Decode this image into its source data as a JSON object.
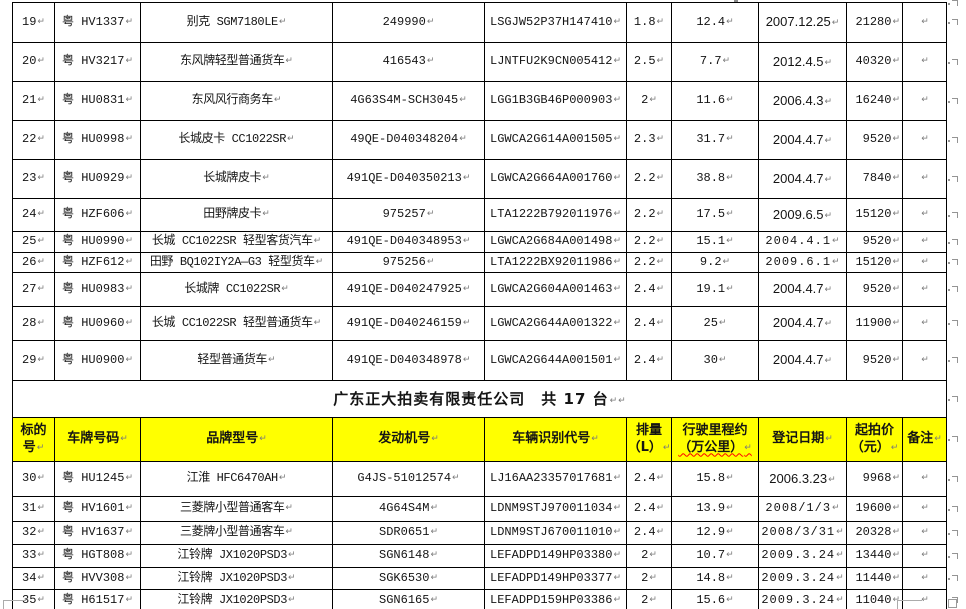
{
  "document": {
    "section_title": "广东正大拍卖有限责任公司　共 17 台",
    "marks": {
      "paragraph_mark": "↵"
    },
    "colors": {
      "header_bg": "#ffff00",
      "border": "#000000",
      "spellcheck_underline": "#ff0000",
      "formatting_mark_gray": "#808080"
    },
    "columns": [
      {
        "key": "no",
        "label_lines": [
          "标的",
          "号"
        ]
      },
      {
        "key": "plate",
        "label_lines": [
          "车牌号码"
        ]
      },
      {
        "key": "brand",
        "label_lines": [
          "品牌型号"
        ]
      },
      {
        "key": "engine",
        "label_lines": [
          "发动机号"
        ]
      },
      {
        "key": "vin",
        "label_lines": [
          "车辆识别代号"
        ]
      },
      {
        "key": "disp",
        "label_lines": [
          "排量",
          "（L）"
        ]
      },
      {
        "key": "mileage",
        "label_lines": [
          "行驶里程约",
          "（万公里）"
        ],
        "squiggle_line": 1
      },
      {
        "key": "date",
        "label_lines": [
          "登记日期"
        ]
      },
      {
        "key": "price",
        "label_lines": [
          "起拍价",
          "（元）"
        ]
      },
      {
        "key": "remark",
        "label_lines": [
          "备注"
        ]
      }
    ],
    "rows_above_title": [
      {
        "no": "19",
        "plate": "粤 HV1337",
        "brand": "别克 SGM7180LE",
        "engine": "249990",
        "vin": "LSGJW52P37H147410",
        "disp": "1.8",
        "mileage": "12.4",
        "date": "2007.12.25",
        "price": "21280",
        "remark": "",
        "date_font": "sans"
      },
      {
        "no": "20",
        "plate": "粤 HV3217",
        "brand": "东风牌轻型普通货车",
        "engine": "416543",
        "vin": "LJNTFU2K9CN005412",
        "disp": "2.5",
        "mileage": "7.7",
        "date": "2012.4.5",
        "price": "40320",
        "remark": "",
        "date_font": "sans"
      },
      {
        "no": "21",
        "plate": "粤 HU0831",
        "brand": "东风风行商务车",
        "engine": "4G63S4M-SCH3045",
        "vin": "LGG1B3GB46P000903",
        "disp": "2",
        "mileage": "11.6",
        "date": "2006.4.3",
        "price": "16240",
        "remark": "",
        "date_font": "sans"
      },
      {
        "no": "22",
        "plate": "粤 HU0998",
        "brand": "长城皮卡 CC1022SR",
        "engine": "49QE-D040348204",
        "vin": "LGWCA2G614A001505",
        "disp": "2.3",
        "mileage": "31.7",
        "date": "2004.4.7",
        "price": "9520",
        "remark": "",
        "date_font": "sans"
      },
      {
        "no": "23",
        "plate": "粤 HU0929",
        "brand": "长城牌皮卡",
        "engine": "491QE-D040350213",
        "vin": "LGWCA2G664A001760",
        "disp": "2.2",
        "mileage": "38.8",
        "date": "2004.4.7",
        "price": "7840",
        "remark": "",
        "date_font": "sans"
      },
      {
        "no": "24",
        "plate": "粤 HZF606",
        "brand": "田野牌皮卡",
        "engine": "975257",
        "vin": "LTA1222B792011976",
        "disp": "2.2",
        "mileage": "17.5",
        "date": "2009.6.5",
        "price": "15120",
        "remark": "",
        "date_font": "sans"
      },
      {
        "no": "25",
        "plate": "粤 HU0990",
        "brand": "长城 CC1022SR 轻型客货汽车",
        "engine": "491QE-D040348953",
        "vin": "LGWCA2G684A001498",
        "disp": "2.2",
        "mileage": "15.1",
        "date": "2004.4.1",
        "price": "9520",
        "remark": "",
        "date_font": "song"
      },
      {
        "no": "26",
        "plate": "粤 HZF612",
        "brand": "田野 BQ102IY2A—G3 轻型货车",
        "engine": "975256",
        "vin": "LTA1222BX92011986",
        "disp": "2.2",
        "mileage": "9.2",
        "date": "2009.6.1",
        "price": "15120",
        "remark": "",
        "date_font": "song"
      },
      {
        "no": "27",
        "plate": "粤 HU0983",
        "brand": "长城牌 CC1022SR",
        "engine": "491QE-D040247925",
        "vin": "LGWCA2G604A001463",
        "disp": "2.4",
        "mileage": "19.1",
        "date": "2004.4.7",
        "price": "9520",
        "remark": "",
        "date_font": "sans"
      },
      {
        "no": "28",
        "plate": "粤 HU0960",
        "brand": "长城 CC1022SR 轻型普通货车",
        "engine": "491QE-D040246159",
        "vin": "LGWCA2G644A001322",
        "disp": "2.4",
        "mileage": "25",
        "date": "2004.4.7",
        "price": "11900",
        "remark": "",
        "date_font": "sans"
      },
      {
        "no": "29",
        "plate": "粤 HU0900",
        "brand": "轻型普通货车",
        "engine": "491QE-D040348978",
        "vin": "LGWCA2G644A001501",
        "disp": "2.4",
        "mileage": "30",
        "date": "2004.4.7",
        "price": "9520",
        "remark": "",
        "date_font": "sans"
      }
    ],
    "rows_below_header": [
      {
        "no": "30",
        "plate": "粤 HU1245",
        "brand": "江淮 HFC6470AH",
        "engine": "G4JS-51012574",
        "vin": "LJ16AA23357017681",
        "disp": "2.4",
        "mileage": "15.8",
        "date": "2006.3.23",
        "price": "9968",
        "remark": "",
        "date_font": "sans"
      },
      {
        "no": "31",
        "plate": "粤 HV1601",
        "brand": "三菱牌小型普通客车",
        "engine": "4G64S4M",
        "vin": "LDNM9STJ970011034",
        "disp": "2.4",
        "mileage": "13.9",
        "date": "2008/1/3",
        "price": "19600",
        "remark": "",
        "date_font": "song"
      },
      {
        "no": "32",
        "plate": "粤 HV1637",
        "brand": "三菱牌小型普通客车",
        "engine": "SDR0651",
        "vin": "LDNM9STJ670011010",
        "disp": "2.4",
        "mileage": "12.9",
        "date": "2008/3/31",
        "price": "20328",
        "remark": "",
        "date_font": "song"
      },
      {
        "no": "33",
        "plate": "粤 HGT808",
        "brand": "江铃牌 JX1020PSD3",
        "engine": "SGN6148",
        "vin": "LEFADPD149HP03380",
        "disp": "2",
        "mileage": "10.7",
        "date": "2009.3.24",
        "price": "13440",
        "remark": "",
        "date_font": "song"
      },
      {
        "no": "34",
        "plate": "粤 HVV308",
        "brand": "江铃牌 JX1020PSD3",
        "engine": "SGK6530",
        "vin": "LEFADPD149HP03377",
        "disp": "2",
        "mileage": "14.8",
        "date": "2009.3.24",
        "price": "11440",
        "remark": "",
        "date_font": "song"
      },
      {
        "no": "35",
        "plate": "粤 H61517",
        "brand": "江铃牌 JX1020PSD3",
        "engine": "SGN6165",
        "vin": "LEFADPD159HP03386",
        "disp": "2",
        "mileage": "15.6",
        "date": "2009.3.24",
        "price": "11040",
        "remark": "",
        "date_font": "song"
      }
    ]
  }
}
